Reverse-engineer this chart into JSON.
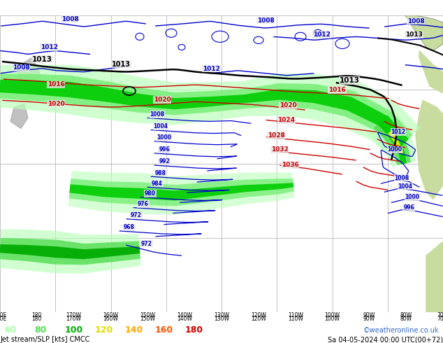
{
  "title_left": "Jet stream/SLP [kts] CMCC",
  "title_right": "Sa 04-05-2024 00:00 UTC(00+72)",
  "copyright": "©weatheronline.co.uk",
  "legend_values": [
    "60",
    "80",
    "100",
    "120",
    "140",
    "160",
    "180"
  ],
  "legend_colors": [
    "#aaffaa",
    "#55dd55",
    "#00aa00",
    "#dddd00",
    "#ffaa00",
    "#ff5500",
    "#cc0000"
  ],
  "background_color": "#ffffff",
  "map_bg": "#e8e8e8",
  "land_color": "#c8dca0",
  "grid_color": "#aaaaaa",
  "slp_blue": "#0000cc",
  "slp_red": "#cc0000",
  "slp_black": "#000000",
  "figsize": [
    6.34,
    4.9
  ],
  "dpi": 100
}
